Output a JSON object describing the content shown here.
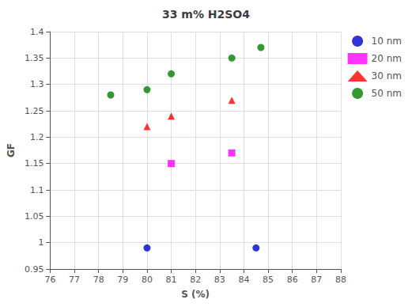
{
  "chart_data": {
    "type": "scatter",
    "title": "33 m% H2SO4",
    "xlabel": "S (%)",
    "ylabel": "GF",
    "xlim": [
      76,
      88
    ],
    "ylim": [
      0.95,
      1.4
    ],
    "xticks": [
      76,
      77,
      78,
      79,
      80,
      81,
      82,
      83,
      84,
      85,
      86,
      87,
      88
    ],
    "yticks": [
      0.95,
      1,
      1.05,
      1.1,
      1.15,
      1.2,
      1.25,
      1.3,
      1.35,
      1.4
    ],
    "grid": true,
    "legend": "right",
    "series": [
      {
        "name": "10 nm",
        "color": "#0000cc",
        "marker": "circle",
        "x": [
          80,
          84.5
        ],
        "values": [
          0.99,
          0.99
        ]
      },
      {
        "name": "20 nm",
        "color": "#ff00ff",
        "marker": "square",
        "x": [
          81,
          83.5
        ],
        "values": [
          1.15,
          1.17
        ]
      },
      {
        "name": "30 nm",
        "color": "#ff0000",
        "marker": "triangle",
        "x": [
          80,
          81,
          83.5
        ],
        "values": [
          1.22,
          1.24,
          1.27
        ]
      },
      {
        "name": "50 nm",
        "color": "#008000",
        "marker": "circle",
        "x": [
          78.5,
          80,
          81,
          83.5,
          84.7
        ],
        "values": [
          1.28,
          1.29,
          1.32,
          1.35,
          1.37
        ]
      }
    ]
  }
}
